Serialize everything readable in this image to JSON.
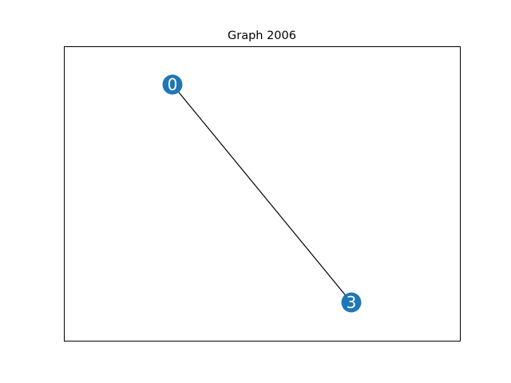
{
  "title": "Graph 2006",
  "colors": {
    "node": "#1f77b4",
    "edge": "#000000",
    "frame": "#000000",
    "label": "#ffffff"
  },
  "graph": {
    "nodes": [
      {
        "id": "0",
        "label": "0"
      },
      {
        "id": "3",
        "label": "3"
      }
    ],
    "edges": [
      {
        "source": "0",
        "target": "3"
      }
    ]
  }
}
